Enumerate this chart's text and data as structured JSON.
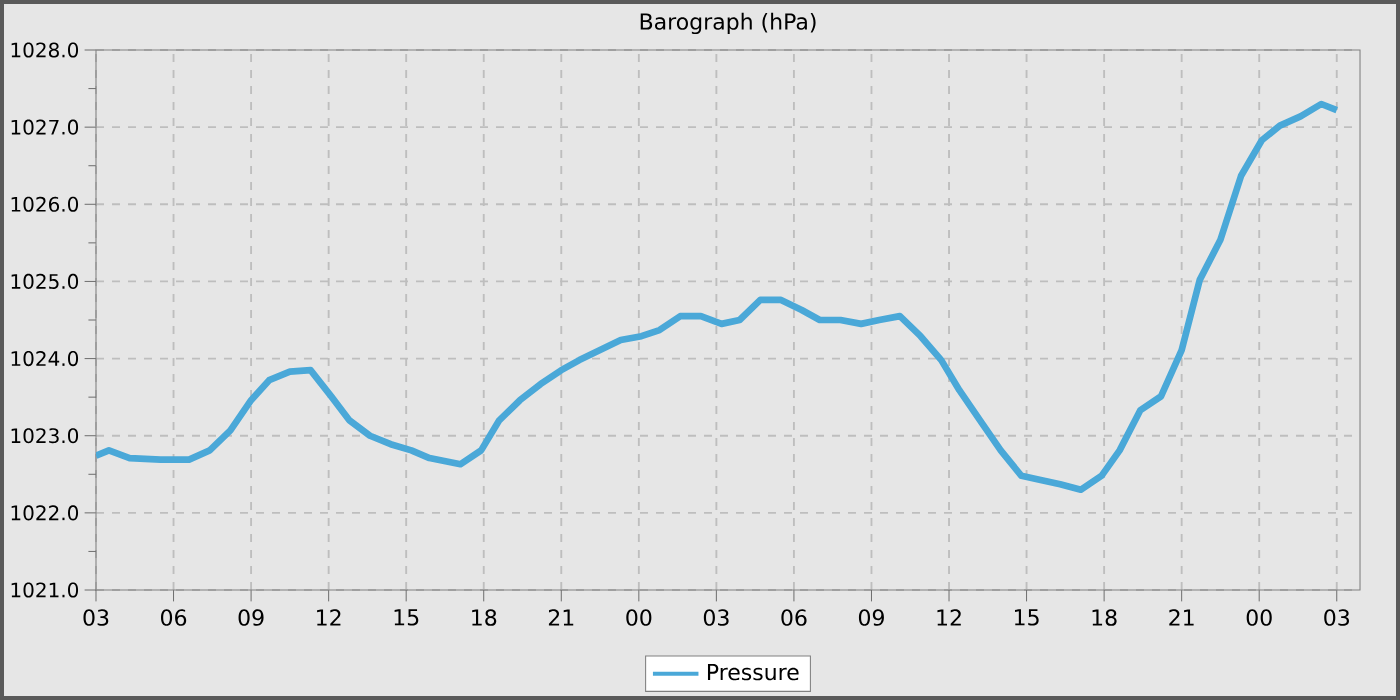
{
  "chart_data": {
    "type": "line",
    "title": "Barograph (hPa)",
    "x": [
      3.0,
      3.5,
      4.3,
      5.5,
      6.6,
      7.4,
      8.2,
      9.0,
      9.7,
      10.5,
      11.3,
      12.1,
      12.8,
      13.6,
      14.4,
      15.2,
      15.9,
      17.1,
      17.9,
      18.6,
      19.4,
      20.2,
      21.0,
      21.7,
      22.5,
      23.3,
      24.1,
      24.8,
      25.6,
      26.4,
      27.2,
      27.9,
      28.7,
      29.5,
      30.3,
      31.0,
      31.8,
      32.6,
      33.3,
      34.1,
      34.9,
      35.7,
      36.4,
      37.2,
      38.0,
      38.8,
      39.5,
      40.3,
      41.1,
      41.9,
      42.6,
      43.4,
      44.2,
      45.0,
      45.7,
      46.5,
      47.3,
      48.1,
      48.8,
      49.6,
      50.4,
      51.0
    ],
    "series": [
      {
        "name": "Pressure",
        "color": "#4aa8d8",
        "values": [
          1022.74,
          1022.81,
          1022.71,
          1022.69,
          1022.69,
          1022.81,
          1023.07,
          1023.46,
          1023.72,
          1023.83,
          1023.85,
          1023.51,
          1023.2,
          1023.0,
          1022.89,
          1022.81,
          1022.71,
          1022.63,
          1022.81,
          1023.2,
          1023.46,
          1023.67,
          1023.85,
          1023.98,
          1024.11,
          1024.24,
          1024.29,
          1024.37,
          1024.55,
          1024.55,
          1024.45,
          1024.5,
          1024.76,
          1024.76,
          1024.63,
          1024.5,
          1024.5,
          1024.45,
          1024.5,
          1024.55,
          1024.29,
          1023.98,
          1023.59,
          1023.2,
          1022.81,
          1022.48,
          1022.43,
          1022.37,
          1022.3,
          1022.48,
          1022.81,
          1023.33,
          1023.51,
          1024.11,
          1025.02,
          1025.54,
          1026.37,
          1026.83,
          1027.02,
          1027.14,
          1027.3,
          1027.22
        ]
      }
    ],
    "xlim": [
      3,
      51.9
    ],
    "xticks": [
      {
        "value": 3,
        "label": "03"
      },
      {
        "value": 6,
        "label": "06"
      },
      {
        "value": 9,
        "label": "09"
      },
      {
        "value": 12,
        "label": "12"
      },
      {
        "value": 15,
        "label": "15"
      },
      {
        "value": 18,
        "label": "18"
      },
      {
        "value": 21,
        "label": "21"
      },
      {
        "value": 24,
        "label": "00"
      },
      {
        "value": 27,
        "label": "03"
      },
      {
        "value": 30,
        "label": "06"
      },
      {
        "value": 33,
        "label": "09"
      },
      {
        "value": 36,
        "label": "12"
      },
      {
        "value": 39,
        "label": "15"
      },
      {
        "value": 42,
        "label": "18"
      },
      {
        "value": 45,
        "label": "21"
      },
      {
        "value": 48,
        "label": "00"
      },
      {
        "value": 51,
        "label": "03"
      }
    ],
    "ylim": [
      1021,
      1028
    ],
    "yticks": [
      {
        "value": 1021,
        "label": "1021.0"
      },
      {
        "value": 1021.5,
        "label": null
      },
      {
        "value": 1022,
        "label": "1022.0"
      },
      {
        "value": 1022.5,
        "label": null
      },
      {
        "value": 1023,
        "label": "1023.0"
      },
      {
        "value": 1023.5,
        "label": null
      },
      {
        "value": 1024,
        "label": "1024.0"
      },
      {
        "value": 1024.5,
        "label": null
      },
      {
        "value": 1025,
        "label": "1025.0"
      },
      {
        "value": 1025.5,
        "label": null
      },
      {
        "value": 1026,
        "label": "1026.0"
      },
      {
        "value": 1026.5,
        "label": null
      },
      {
        "value": 1027,
        "label": "1027.0"
      },
      {
        "value": 1027.5,
        "label": null
      },
      {
        "value": 1028,
        "label": "1028.0"
      }
    ],
    "grid": true,
    "legend": "bottom",
    "line_style": "solid"
  }
}
